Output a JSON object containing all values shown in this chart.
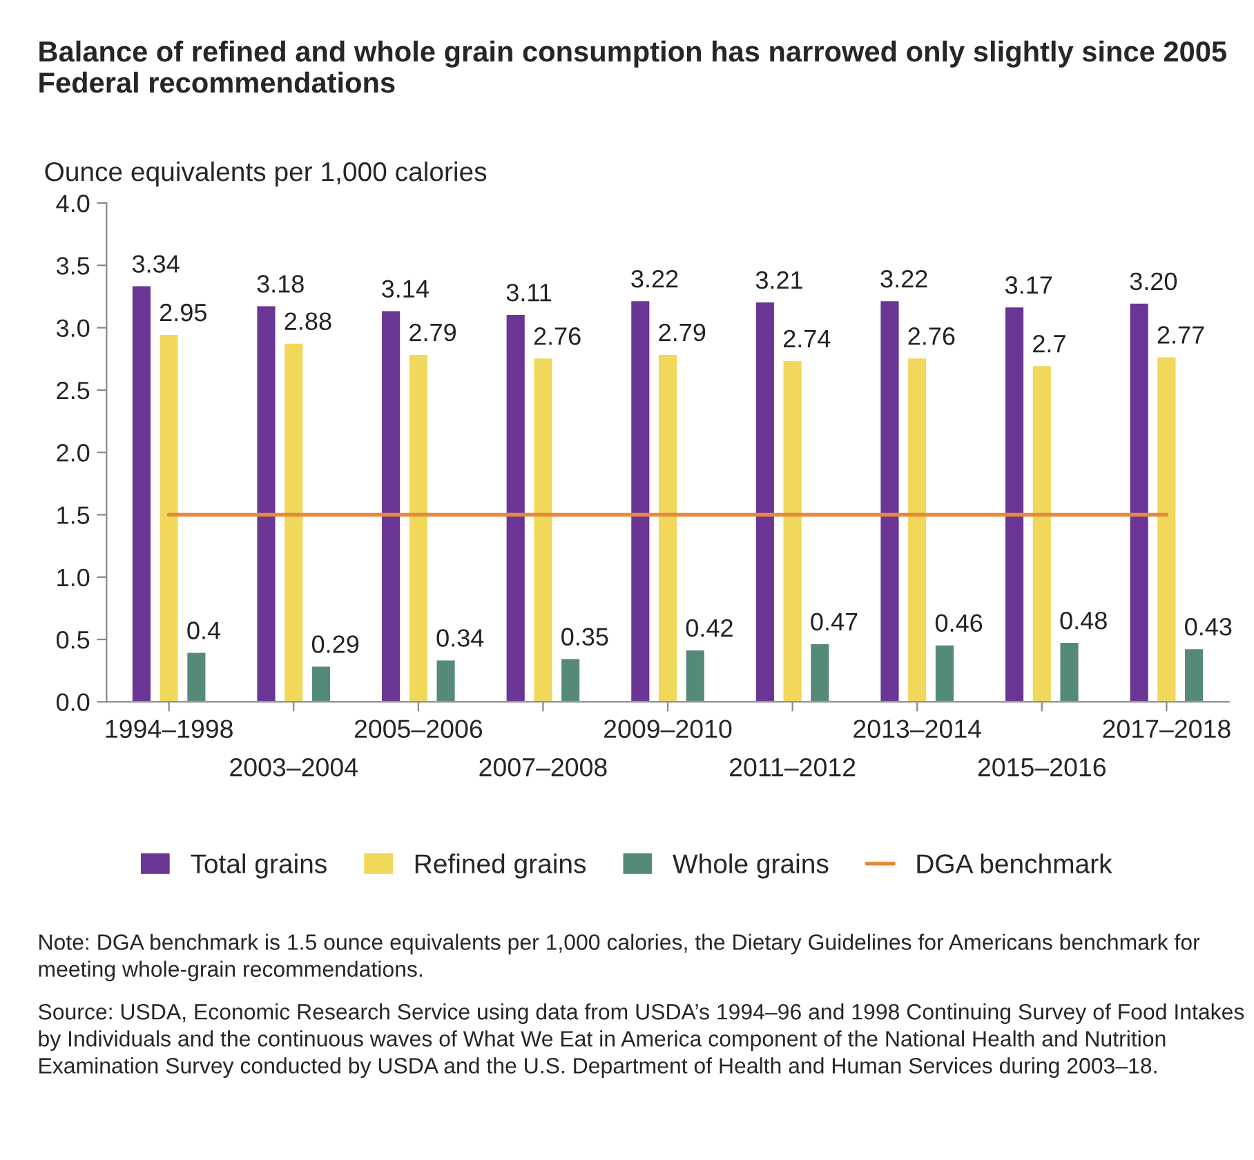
{
  "chart_data": {
    "type": "bar",
    "title": "Balance of refined and whole grain consumption has narrowed only slightly since 2005 Federal recommendations",
    "ylabel": "Ounce equivalents per 1,000 calories",
    "categories": [
      "1994–1998",
      "2003–2004",
      "2005–2006",
      "2007–2008",
      "2009–2010",
      "2011–2012",
      "2013–2014",
      "2015–2016",
      "2017–2018"
    ],
    "series": [
      {
        "name": "Total grains",
        "color": "#6a3594",
        "values": [
          3.34,
          3.18,
          3.14,
          3.11,
          3.22,
          3.21,
          3.22,
          3.17,
          3.2
        ],
        "value_labels": [
          "3.34",
          "3.18",
          "3.14",
          "3.11",
          "3.22",
          "3.21",
          "3.22",
          "3.17",
          "3.20"
        ]
      },
      {
        "name": "Refined grains",
        "color": "#f1d75a",
        "values": [
          2.95,
          2.88,
          2.79,
          2.76,
          2.79,
          2.74,
          2.76,
          2.7,
          2.77
        ],
        "value_labels": [
          "2.95",
          "2.88",
          "2.79",
          "2.76",
          "2.79",
          "2.74",
          "2.76",
          "2.7",
          "2.77"
        ]
      },
      {
        "name": "Whole grains",
        "color": "#558a78",
        "values": [
          0.4,
          0.29,
          0.34,
          0.35,
          0.42,
          0.47,
          0.46,
          0.48,
          0.43
        ],
        "value_labels": [
          "0.4",
          "0.29",
          "0.34",
          "0.35",
          "0.42",
          "0.47",
          "0.46",
          "0.48",
          "0.43"
        ]
      },
      {
        "name": "DGA benchmark",
        "type": "line",
        "color": "#e58a3a",
        "values": [
          1.5,
          1.5,
          1.5,
          1.5,
          1.5,
          1.5,
          1.5,
          1.5,
          1.5
        ]
      }
    ],
    "ylim": [
      0,
      4.0
    ],
    "yticks": [
      {
        "value": 0,
        "label": "0.0"
      },
      {
        "value": 0.5,
        "label": "0.5"
      },
      {
        "value": 1.0,
        "label": "1.0"
      },
      {
        "value": 1.5,
        "label": "1.5"
      },
      {
        "value": 2.0,
        "label": "2.0"
      },
      {
        "value": 2.5,
        "label": "2.5"
      },
      {
        "value": 3.0,
        "label": "3.0"
      },
      {
        "value": 3.5,
        "label": "3.5"
      },
      {
        "value": 4.0,
        "label": "4.0"
      }
    ],
    "grid": false,
    "legend": "bottom",
    "annotations": [
      "Note: DGA benchmark is 1.5 ounce equivalents per 1,000 calories, the Dietary Guidelines for Americans benchmark for meeting whole-grain recommendations.",
      "Source: USDA, Economic Research Service using data from USDA’s 1994–96 and 1998 Continuing Survey of Food Intakes by Individuals and the continuous waves of What We Eat in America component of the National Health and Nutrition Examination Survey conducted by USDA and the U.S. Department of Health and Human Services during 2003–18."
    ]
  }
}
